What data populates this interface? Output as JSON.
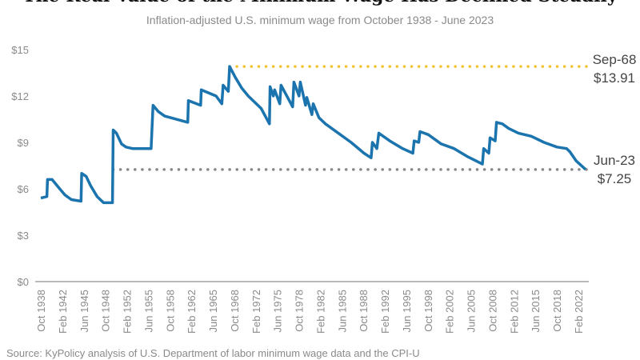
{
  "title": "The Real Value of the Minimum Wage Has Declined Steadily",
  "subtitle": "Inflation-adjusted U.S. minimum wage from October 1938 - June 2023",
  "source": "Source: KyPolicy analysis of U.S. Department of labor minimum wage data and the CPI-U",
  "colors": {
    "line": "#1b74ad",
    "peak": "#f2c230",
    "current": "#888888",
    "axis": "#bbbbbb"
  },
  "chart_data": {
    "type": "line",
    "title": "Inflation-adjusted U.S. minimum wage from October 1938 - June 2023",
    "xlabel": "",
    "ylabel": "",
    "ylim": [
      0,
      15
    ],
    "xlim": [
      1938.75,
      2023.45
    ],
    "y_ticks": [
      "$0",
      "$3",
      "$6",
      "$9",
      "$12",
      "$15"
    ],
    "y_tick_values": [
      0,
      3,
      6,
      9,
      12,
      15
    ],
    "x_ticks": [
      "Oct 1938",
      "Feb 1942",
      "Jun 1945",
      "Oct 1948",
      "Feb 1952",
      "Jun 1955",
      "Oct 1958",
      "Feb 1962",
      "Jun 1965",
      "Oct 1968",
      "Feb 1972",
      "Jun 1975",
      "Oct 1978",
      "Feb 1982",
      "Jun 1985",
      "Oct 1988",
      "Feb 1992",
      "Jun 1995",
      "Oct 1998",
      "Feb 2002",
      "Jun 2005",
      "Oct 2008",
      "Feb 2012",
      "Jun 2015",
      "Oct 2018",
      "Feb 2022"
    ],
    "grid": false,
    "series": [
      {
        "name": "Inflation-adjusted minimum wage",
        "points": [
          [
            1938.75,
            5.4
          ],
          [
            1939.7,
            5.5
          ],
          [
            1939.8,
            6.6
          ],
          [
            1940.5,
            6.6
          ],
          [
            1941.5,
            6.1
          ],
          [
            1942.5,
            5.6
          ],
          [
            1943.5,
            5.3
          ],
          [
            1945.0,
            5.2
          ],
          [
            1945.1,
            7.0
          ],
          [
            1945.8,
            6.8
          ],
          [
            1946.5,
            6.2
          ],
          [
            1947.5,
            5.5
          ],
          [
            1948.5,
            5.1
          ],
          [
            1949.9,
            5.1
          ],
          [
            1950.0,
            9.8
          ],
          [
            1950.5,
            9.6
          ],
          [
            1951.3,
            8.9
          ],
          [
            1952,
            8.7
          ],
          [
            1953,
            8.6
          ],
          [
            1955.9,
            8.6
          ],
          [
            1956.2,
            11.4
          ],
          [
            1957,
            11.0
          ],
          [
            1958,
            10.7
          ],
          [
            1961.6,
            10.3
          ],
          [
            1961.7,
            11.7
          ],
          [
            1963.6,
            11.4
          ],
          [
            1963.7,
            12.4
          ],
          [
            1966,
            12.0
          ],
          [
            1966.9,
            11.5
          ],
          [
            1967.1,
            12.7
          ],
          [
            1967.9,
            12.3
          ],
          [
            1968.1,
            13.91
          ],
          [
            1969,
            13.2
          ],
          [
            1970,
            12.5
          ],
          [
            1971,
            12.0
          ],
          [
            1973,
            11.2
          ],
          [
            1974.3,
            10.2
          ],
          [
            1974.4,
            12.6
          ],
          [
            1974.9,
            12.0
          ],
          [
            1975.1,
            12.4
          ],
          [
            1975.9,
            11.5
          ],
          [
            1976.1,
            12.7
          ],
          [
            1977.9,
            11.3
          ],
          [
            1978.1,
            12.9
          ],
          [
            1978.9,
            12.0
          ],
          [
            1979.1,
            12.9
          ],
          [
            1979.9,
            11.4
          ],
          [
            1980.1,
            11.9
          ],
          [
            1980.9,
            10.8
          ],
          [
            1981.1,
            11.5
          ],
          [
            1982,
            10.6
          ],
          [
            1983,
            10.2
          ],
          [
            1985,
            9.6
          ],
          [
            1987,
            9.0
          ],
          [
            1989,
            8.3
          ],
          [
            1990.1,
            8.0
          ],
          [
            1990.3,
            9.0
          ],
          [
            1991,
            8.6
          ],
          [
            1991.3,
            9.6
          ],
          [
            1993,
            9.1
          ],
          [
            1995,
            8.6
          ],
          [
            1996.6,
            8.3
          ],
          [
            1996.8,
            9.1
          ],
          [
            1997.5,
            9.0
          ],
          [
            1997.7,
            9.7
          ],
          [
            1999,
            9.5
          ],
          [
            2001,
            8.9
          ],
          [
            2003,
            8.6
          ],
          [
            2005,
            8.1
          ],
          [
            2007.4,
            7.6
          ],
          [
            2007.6,
            8.6
          ],
          [
            2008.4,
            8.3
          ],
          [
            2008.6,
            9.3
          ],
          [
            2009.4,
            9.1
          ],
          [
            2009.6,
            10.3
          ],
          [
            2010.5,
            10.2
          ],
          [
            2011.5,
            9.9
          ],
          [
            2013,
            9.6
          ],
          [
            2015,
            9.4
          ],
          [
            2017,
            9.0
          ],
          [
            2019,
            8.7
          ],
          [
            2020.5,
            8.6
          ],
          [
            2021,
            8.4
          ],
          [
            2022,
            7.8
          ],
          [
            2023.45,
            7.25
          ]
        ]
      }
    ],
    "reference_lines": [
      {
        "name": "peak",
        "value": 13.91,
        "from": 1968.1,
        "label_date": "Sep-68",
        "label_value": "$13.91"
      },
      {
        "name": "current",
        "value": 7.25,
        "from": 1950.0,
        "label_date": "Jun-23",
        "label_value": "$7.25"
      }
    ]
  }
}
